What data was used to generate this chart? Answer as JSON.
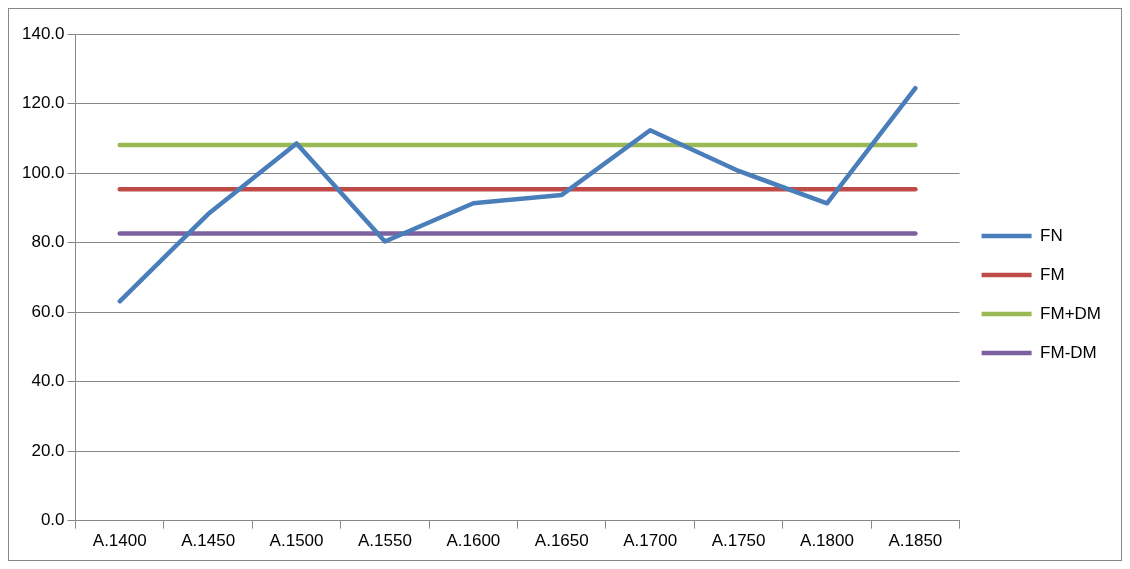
{
  "chart_data": {
    "type": "line",
    "categories": [
      "A.1400",
      "A.1450",
      "A.1500",
      "A.1550",
      "A.1600",
      "A.1650",
      "A.1700",
      "A.1750",
      "A.1800",
      "A.1850"
    ],
    "series": [
      {
        "name": "FN",
        "color": "#4a7ebb",
        "values": [
          63.1,
          88.2,
          108.5,
          80.3,
          91.3,
          93.7,
          112.3,
          100.6,
          91.3,
          124.4
        ]
      },
      {
        "name": "FM",
        "color": "#be4b48",
        "values": [
          95.3,
          95.3,
          95.3,
          95.3,
          95.3,
          95.3,
          95.3,
          95.3,
          95.3,
          95.3
        ]
      },
      {
        "name": "FM+DM",
        "color": "#98b954",
        "values": [
          108.1,
          108.1,
          108.1,
          108.1,
          108.1,
          108.1,
          108.1,
          108.1,
          108.1,
          108.1
        ]
      },
      {
        "name": "FM-DM",
        "color": "#7d60a0",
        "values": [
          82.6,
          82.6,
          82.6,
          82.6,
          82.6,
          82.6,
          82.6,
          82.6,
          82.6,
          82.6
        ]
      }
    ],
    "ylim": [
      0,
      140
    ],
    "yticks": [
      {
        "value": 0,
        "label": "0.0"
      },
      {
        "value": 20,
        "label": "20.0"
      },
      {
        "value": 40,
        "label": "40.0"
      },
      {
        "value": 60,
        "label": "60.0"
      },
      {
        "value": 80,
        "label": "80.0"
      },
      {
        "value": 100,
        "label": "100.0"
      },
      {
        "value": 120,
        "label": "120.0"
      },
      {
        "value": 140,
        "label": "140.0"
      }
    ],
    "grid": "y",
    "legend": "right",
    "marker": "none",
    "line_style": "solid"
  }
}
